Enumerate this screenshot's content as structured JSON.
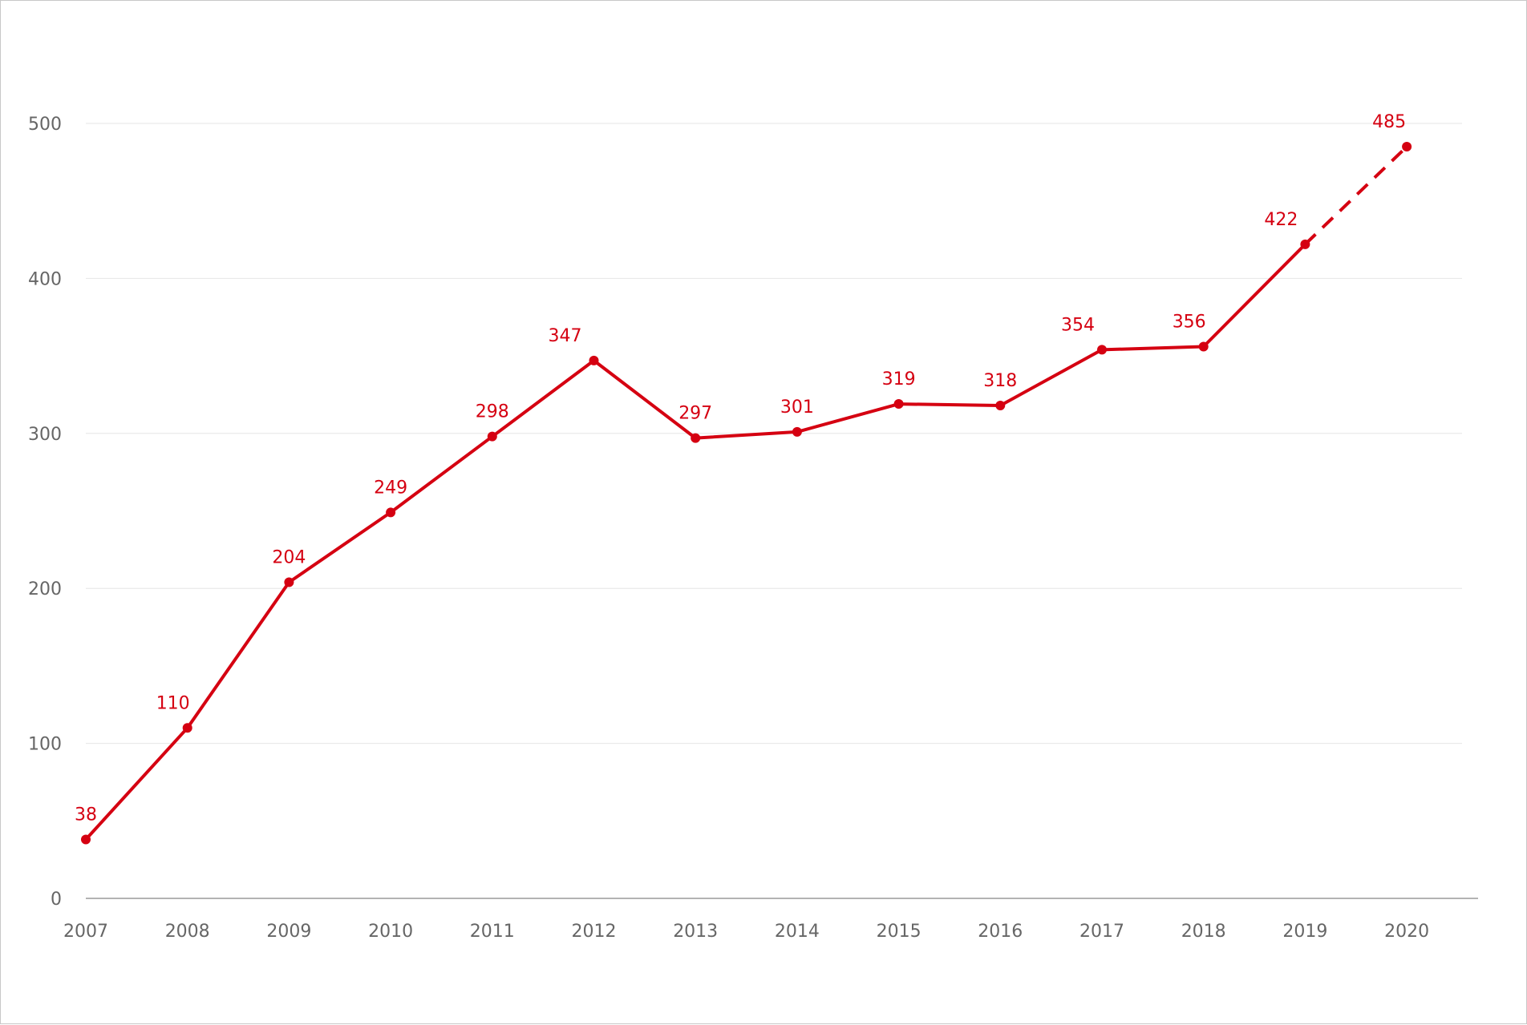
{
  "chart_data": {
    "type": "line",
    "title": "",
    "xlabel": "",
    "ylabel": "",
    "categories": [
      "2007",
      "2008",
      "2009",
      "2010",
      "2011",
      "2012",
      "2013",
      "2014",
      "2015",
      "2016",
      "2017",
      "2018",
      "2019",
      "2020"
    ],
    "series": [
      {
        "values": [
          38,
          110,
          204,
          249,
          298,
          347,
          297,
          301,
          319,
          318,
          354,
          356,
          422,
          485
        ],
        "color": "#d50011",
        "dashed_last_segment": true
      }
    ],
    "data_labels": [
      "38",
      "110",
      "204",
      "249",
      "298",
      "347",
      "297",
      "301",
      "319",
      "318",
      "354",
      "356",
      "422",
      "485"
    ],
    "y_ticks": [
      "0",
      "100",
      "200",
      "300",
      "400",
      "500"
    ],
    "ylim": [
      0,
      500
    ],
    "grid": true,
    "legend": "none"
  }
}
